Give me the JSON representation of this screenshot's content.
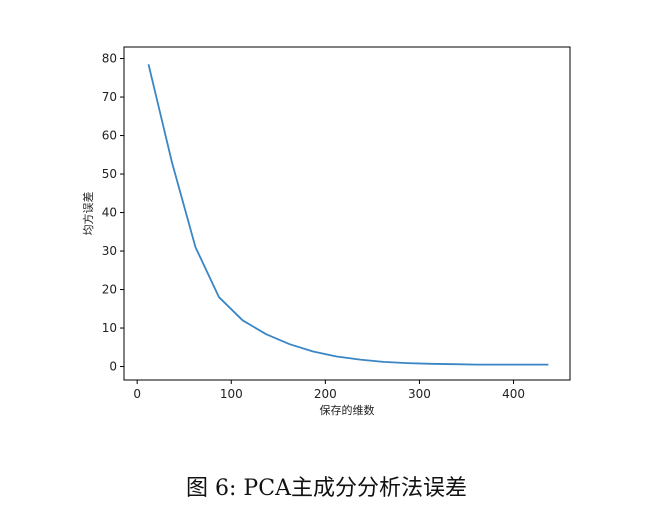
{
  "chart_data": {
    "type": "line",
    "xlabel": "保存的维数",
    "ylabel": "均方误差",
    "xlim": [
      -14,
      460
    ],
    "ylim": [
      -3.5,
      83
    ],
    "x_ticks": [
      0,
      100,
      200,
      300,
      400
    ],
    "y_ticks": [
      0,
      10,
      20,
      30,
      40,
      50,
      60,
      70,
      80
    ],
    "grid": false,
    "series": [
      {
        "color": "#3a86c5",
        "x": [
          12,
          37,
          62,
          87,
          112,
          137,
          162,
          187,
          212,
          237,
          262,
          287,
          312,
          337,
          362,
          387,
          412,
          437
        ],
        "y": [
          78.5,
          53,
          31,
          18,
          12,
          8.4,
          5.8,
          3.9,
          2.6,
          1.8,
          1.2,
          0.9,
          0.7,
          0.6,
          0.5,
          0.5,
          0.5,
          0.5
        ]
      }
    ]
  },
  "caption": "图 6: PCA主成分分析法误差"
}
